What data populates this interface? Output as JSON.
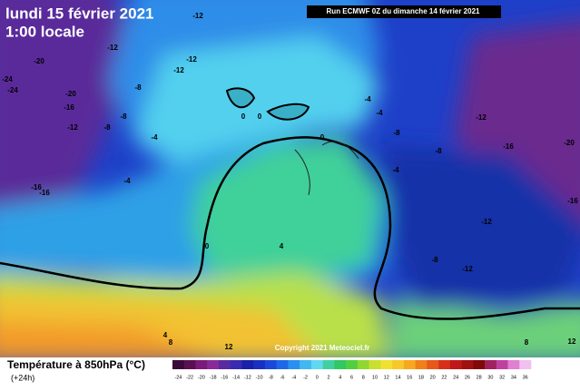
{
  "header": {
    "date": "lundi 15 février 2021",
    "time": "1:00 locale",
    "run": "Run ECMWF 0Z du dimanche 14 février 2021"
  },
  "footer": {
    "title": "Température à 850hPa (°C)",
    "lead": "(+24h)",
    "copyright": "Copyright 2021 Meteociel.fr"
  },
  "colorbar": {
    "labels": [
      -24,
      -22,
      -20,
      -18,
      -16,
      -14,
      -12,
      -10,
      -8,
      -6,
      -4,
      -2,
      0,
      2,
      4,
      6,
      8,
      10,
      12,
      14,
      16,
      18,
      20,
      22,
      24,
      26,
      28,
      30,
      32,
      34,
      36
    ]
  },
  "map": {
    "contour_labels": [
      -12,
      -20,
      -24,
      -24,
      -12,
      -12,
      -12,
      -8,
      -20,
      -16,
      -12,
      -8,
      -8,
      -4,
      -4,
      -16,
      -16,
      0,
      0,
      0,
      -4,
      -4,
      -8,
      -8,
      -4,
      -12,
      -16,
      -20,
      -12,
      -16,
      -8,
      -12,
      0,
      4,
      4,
      8,
      12,
      8,
      12
    ]
  }
}
